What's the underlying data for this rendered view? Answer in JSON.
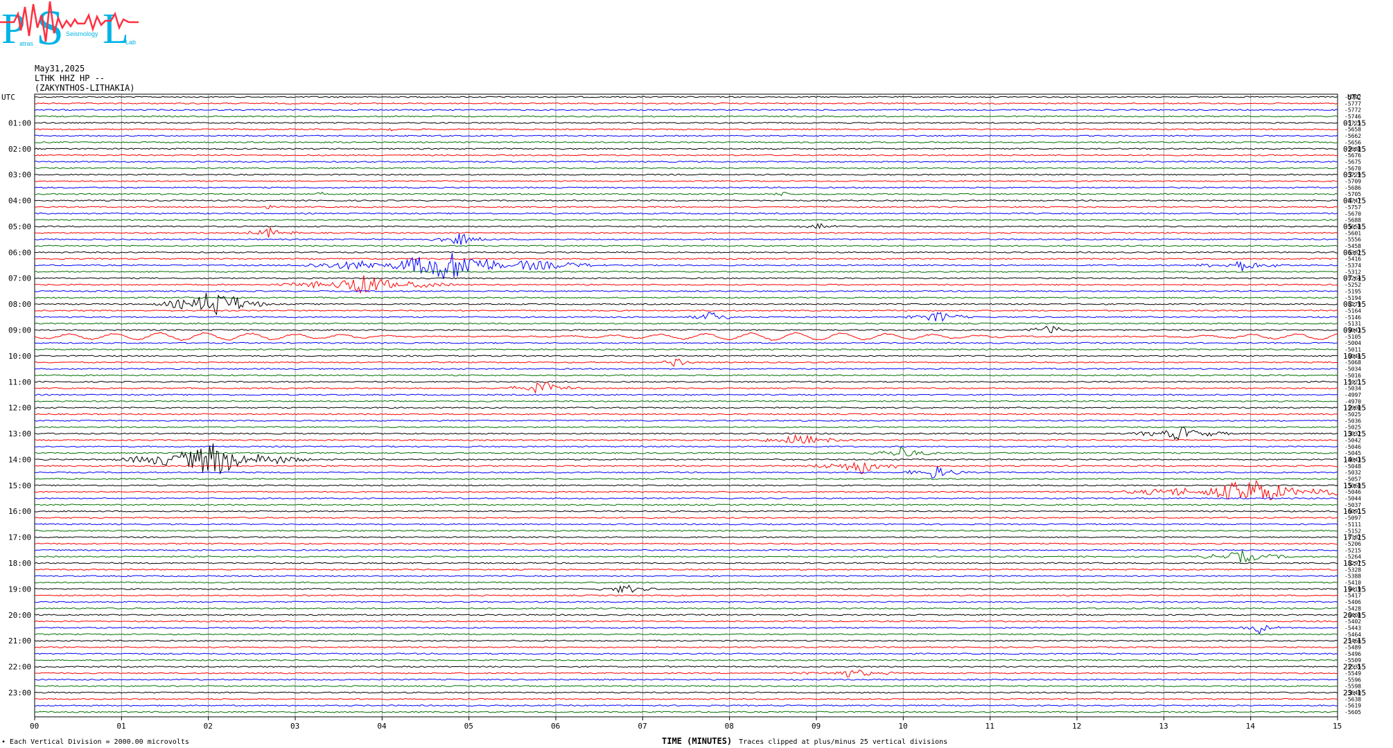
{
  "header": {
    "logo_text": "PSL",
    "logo_sub": [
      "P",
      "Seismology",
      "Lab"
    ],
    "date": "May31,2025",
    "station": "LTHK HHZ HP --",
    "location": "(ZAKYNTHOS-LITHAKIA)"
  },
  "colors": {
    "trace_cycle": [
      "#000000",
      "#ff0000",
      "#0000ff",
      "#007000"
    ],
    "grid": "#a0a0a0",
    "logo": "#00b4e6",
    "logo_accent": "#ff3040"
  },
  "footer": {
    "scale": "Each Vertical Division = 2000.00 microvolts",
    "clip": "Traces clipped at plus/minus 25 vertical divisions",
    "xlabel": "TIME (MINUTES)"
  },
  "chart_data": {
    "type": "line",
    "title": "",
    "xlabel": "TIME (MINUTES)",
    "ylabel": "",
    "xlim": [
      0,
      15
    ],
    "x_ticks": [
      "00",
      "01",
      "02",
      "03",
      "04",
      "05",
      "06",
      "07",
      "08",
      "09",
      "10",
      "11",
      "12",
      "13",
      "14",
      "15"
    ],
    "left_axis_title": "UTC",
    "right_axis_title": "UTC",
    "left_hour_labels": [
      "01:00",
      "02:00",
      "03:00",
      "04:00",
      "05:00",
      "06:00",
      "07:00",
      "08:00",
      "09:00",
      "10:00",
      "11:00",
      "12:00",
      "13:00",
      "14:00",
      "15:00",
      "16:00",
      "17:00",
      "18:00",
      "19:00",
      "20:00",
      "21:00",
      "22:00",
      "23:00"
    ],
    "right_hour_labels": [
      "01:15",
      "02:15",
      "03:15",
      "04:15",
      "05:15",
      "06:15",
      "07:15",
      "08:15",
      "09:15",
      "10:15",
      "11:15",
      "12:15",
      "13:15",
      "14:15",
      "15:15",
      "16:15",
      "17:15",
      "18:15",
      "19:15",
      "20:15",
      "21:15",
      "22:15",
      "23:15"
    ],
    "trace_count": 96,
    "trace_minutes": 15,
    "trace_offsets": [
      -5792,
      -5777,
      -5772,
      -5746,
      -5725,
      -5658,
      -5662,
      -5656,
      -5688,
      -5676,
      -5675,
      -5670,
      -5729,
      -5709,
      -5686,
      -5705,
      -5747,
      -5757,
      -5670,
      -5688,
      -5658,
      -5601,
      -5556,
      -5458,
      -5382,
      -5416,
      -5374,
      -5312,
      -5264,
      -5252,
      -5195,
      -5194,
      -5179,
      -5164,
      -5146,
      -5131,
      -5043,
      -5105,
      -5004,
      -5011,
      -5046,
      -5068,
      -5034,
      -5016,
      -5021,
      -5034,
      -4997,
      -4970,
      -5000,
      -5025,
      -5036,
      -5025,
      -5032,
      -5042,
      -5046,
      -5045,
      -5043,
      -5048,
      -5032,
      -5057,
      -5060,
      -5046,
      -5044,
      -5037,
      -5091,
      -5097,
      -5111,
      -5152,
      -5182,
      -5206,
      -5215,
      -5264,
      -5297,
      -5328,
      -5388,
      -5410,
      -5419,
      -5417,
      -5406,
      -5428,
      -5408,
      -5402,
      -5443,
      -5464,
      -5466,
      -5489,
      -5496,
      -5509,
      -5535,
      -5549,
      -5596,
      -5598,
      -5640,
      -5638,
      -5619,
      -5605
    ],
    "events": [
      {
        "trace": 5,
        "minute": 4.1,
        "amp": 1.2,
        "dur": 0.12
      },
      {
        "trace": 6,
        "minute": 4.7,
        "amp": 0.8,
        "dur": 0.1
      },
      {
        "trace": 15,
        "minute": 3.3,
        "amp": 1.0,
        "dur": 0.1
      },
      {
        "trace": 15,
        "minute": 8.6,
        "amp": 1.2,
        "dur": 0.15
      },
      {
        "trace": 17,
        "minute": 2.7,
        "amp": 1.0,
        "dur": 0.1
      },
      {
        "trace": 21,
        "minute": 2.7,
        "amp": 2.5,
        "dur": 0.2
      },
      {
        "trace": 22,
        "minute": 4.9,
        "amp": 3.0,
        "dur": 0.2
      },
      {
        "trace": 20,
        "minute": 9.0,
        "amp": 2.0,
        "dur": 0.15
      },
      {
        "trace": 26,
        "minute": 4.75,
        "amp": 7.0,
        "dur": 0.8
      },
      {
        "trace": 26,
        "minute": 13.9,
        "amp": 2.8,
        "dur": 0.3
      },
      {
        "trace": 29,
        "minute": 3.8,
        "amp": 4.5,
        "dur": 0.5
      },
      {
        "trace": 32,
        "minute": 2.05,
        "amp": 7.0,
        "dur": 0.3
      },
      {
        "trace": 32,
        "minute": 2.3,
        "amp": 4.0,
        "dur": 0.2
      },
      {
        "trace": 34,
        "minute": 7.8,
        "amp": 3.0,
        "dur": 0.15
      },
      {
        "trace": 34,
        "minute": 10.4,
        "amp": 3.0,
        "dur": 0.2
      },
      {
        "trace": 36,
        "minute": 11.7,
        "amp": 3.0,
        "dur": 0.15
      },
      {
        "trace": 41,
        "minute": 7.4,
        "amp": 3.0,
        "dur": 0.1
      },
      {
        "trace": 45,
        "minute": 5.85,
        "amp": 3.5,
        "dur": 0.25
      },
      {
        "trace": 56,
        "minute": 2.05,
        "amp": 8.0,
        "dur": 0.5
      },
      {
        "trace": 56,
        "minute": 1.75,
        "amp": 4.0,
        "dur": 0.4
      },
      {
        "trace": 57,
        "minute": 9.5,
        "amp": 4.0,
        "dur": 0.3
      },
      {
        "trace": 58,
        "minute": 10.35,
        "amp": 3.5,
        "dur": 0.2
      },
      {
        "trace": 61,
        "minute": 14.0,
        "amp": 6.0,
        "dur": 0.7
      },
      {
        "trace": 52,
        "minute": 13.2,
        "amp": 3.5,
        "dur": 0.3
      },
      {
        "trace": 53,
        "minute": 8.8,
        "amp": 3.0,
        "dur": 0.3
      },
      {
        "trace": 55,
        "minute": 10.0,
        "amp": 3.5,
        "dur": 0.2
      },
      {
        "trace": 71,
        "minute": 13.9,
        "amp": 3.0,
        "dur": 0.3
      },
      {
        "trace": 76,
        "minute": 6.8,
        "amp": 2.5,
        "dur": 0.2
      },
      {
        "trace": 82,
        "minute": 14.1,
        "amp": 3.0,
        "dur": 0.15
      },
      {
        "trace": 89,
        "minute": 9.4,
        "amp": 2.0,
        "dur": 0.4
      }
    ]
  }
}
